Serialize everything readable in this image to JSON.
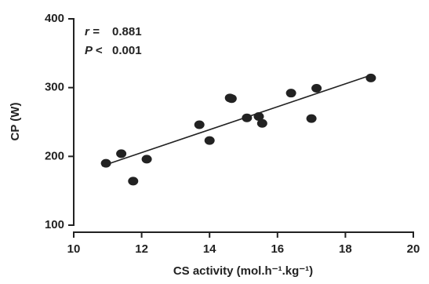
{
  "chart_data": {
    "type": "scatter",
    "xlabel": "CS activity (mol.h⁻¹.kg⁻¹)",
    "ylabel": "CP (W)",
    "annotations": [
      {
        "label": "r =",
        "value": "0.881"
      },
      {
        "label": "P <",
        "value": "0.001"
      }
    ],
    "x": [
      10.95,
      11.4,
      11.75,
      12.15,
      13.7,
      14.0,
      14.6,
      14.65,
      15.1,
      15.45,
      15.55,
      16.4,
      17.0,
      17.15,
      18.75
    ],
    "values": [
      190,
      204,
      164,
      196,
      246,
      223,
      285,
      284,
      256,
      258,
      248,
      292,
      255,
      299,
      314
    ],
    "color": "#222222",
    "fit": {
      "x": [
        10.83,
        18.75
      ],
      "y": [
        186,
        318
      ]
    },
    "xlim": [
      10,
      20
    ],
    "xticks": [
      10,
      12,
      14,
      16,
      18,
      20
    ],
    "ylim": [
      100,
      400
    ],
    "yticks": [
      100,
      200,
      300,
      400
    ]
  }
}
